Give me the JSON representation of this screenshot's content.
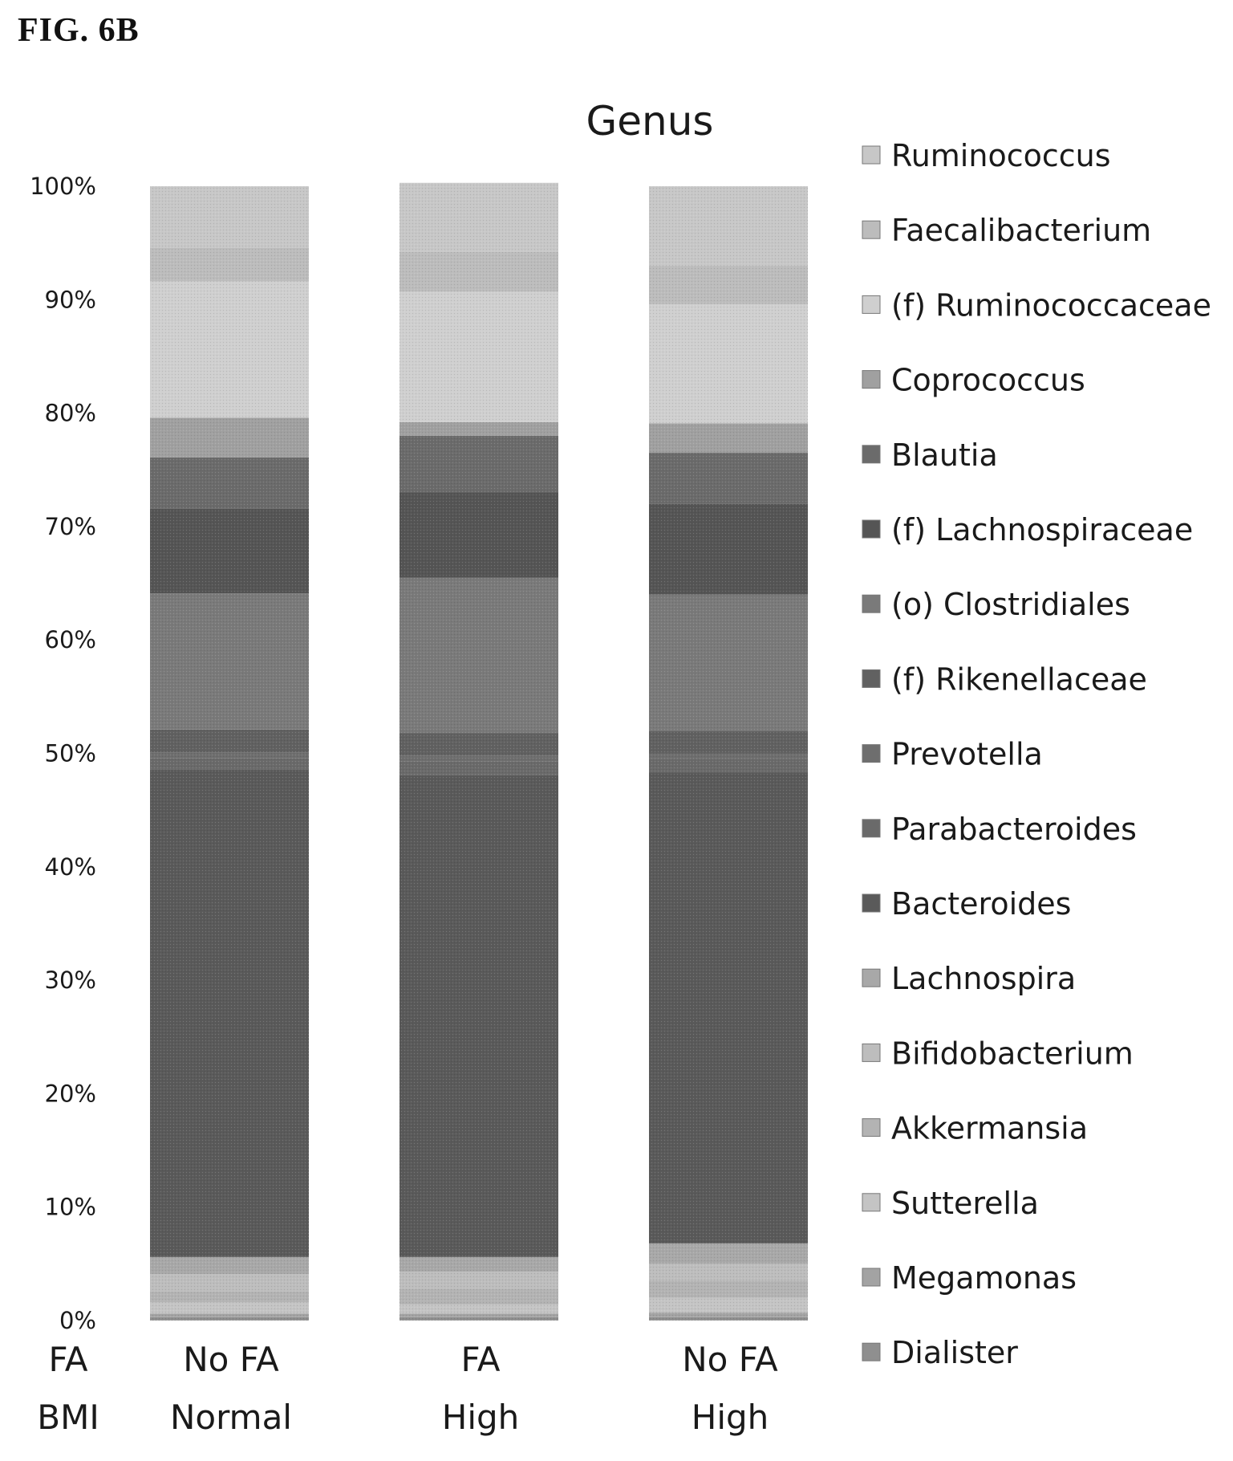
{
  "figure_label": "FIG. 6B",
  "chart_data": {
    "type": "bar",
    "stacked": true,
    "normalized": true,
    "title": "Genus",
    "ylim": [
      0,
      100
    ],
    "y_ticks": [
      "0%",
      "10%",
      "20%",
      "30%",
      "40%",
      "50%",
      "60%",
      "70%",
      "80%",
      "90%",
      "100%"
    ],
    "row_labels": [
      "FA",
      "BMI"
    ],
    "categories": [
      {
        "FA": "No FA",
        "BMI": "Normal"
      },
      {
        "FA": "FA",
        "BMI": "High"
      },
      {
        "FA": "No FA",
        "BMI": "High"
      }
    ],
    "series_stack_order_bottom_to_top": [
      {
        "name": "Dialister",
        "values": [
          0.3,
          0.3,
          0.3
        ],
        "color": "#8f8f8f"
      },
      {
        "name": "Megamonas",
        "values": [
          0.3,
          0.3,
          0.4
        ],
        "color": "#a3a3a3"
      },
      {
        "name": "Sutterella",
        "values": [
          1.0,
          0.8,
          1.3
        ],
        "color": "#c4c4c4"
      },
      {
        "name": "Akkermansia",
        "values": [
          1.0,
          1.4,
          1.5
        ],
        "color": "#b3b3b3"
      },
      {
        "name": "Bifidobacterium",
        "values": [
          1.5,
          1.5,
          1.5
        ],
        "color": "#bdbdbd"
      },
      {
        "name": "Lachnospira",
        "values": [
          1.5,
          1.3,
          1.8
        ],
        "color": "#a8a8a8"
      },
      {
        "name": "Bacteroides",
        "values": [
          43.0,
          42.5,
          41.5
        ],
        "color": "#5a5a5a"
      },
      {
        "name": "Parabacteroides",
        "values": [
          1.0,
          1.2,
          1.2
        ],
        "color": "#6a6a6a"
      },
      {
        "name": "Prevotella",
        "values": [
          0.5,
          0.5,
          0.5
        ],
        "color": "#6e6e6e"
      },
      {
        "name": "(f) Rikenellaceae",
        "values": [
          2.0,
          2.0,
          2.0
        ],
        "color": "#616161"
      },
      {
        "name": "(o) Clostridiales",
        "values": [
          12.0,
          13.7,
          12.0
        ],
        "color": "#7a7a7a"
      },
      {
        "name": "(f) Lachnospiraceae",
        "values": [
          7.5,
          7.5,
          8.0
        ],
        "color": "#555555"
      },
      {
        "name": "Blautia",
        "values": [
          4.5,
          5.0,
          4.5
        ],
        "color": "#6b6b6b"
      },
      {
        "name": "Coprococcus",
        "values": [
          3.5,
          1.2,
          2.6
        ],
        "color": "#a0a0a0"
      },
      {
        "name": "(f) Ruminococcaceae",
        "values": [
          12.0,
          11.5,
          10.5
        ],
        "color": "#cfcfcf"
      },
      {
        "name": "Faecalibacterium",
        "values": [
          3.0,
          3.5,
          3.4
        ],
        "color": "#bcbcbc"
      },
      {
        "name": "Ruminococcus",
        "values": [
          5.4,
          6.1,
          7.0
        ],
        "color": "#c7c7c7"
      }
    ],
    "legend": {
      "placement": "right",
      "entries": [
        "Ruminococcus",
        "Faecalibacterium",
        "(f) Ruminococcaceae",
        "Coprococcus",
        "Blautia",
        "(f) Lachnospiraceae",
        "(o) Clostridiales",
        "(f) Rikenellaceae",
        "Prevotella",
        "Parabacteroides",
        "Bacteroides",
        "Lachnospira",
        "Bifidobacterium",
        "Akkermansia",
        "Sutterella",
        "Megamonas",
        "Dialister"
      ]
    },
    "grid": false
  }
}
